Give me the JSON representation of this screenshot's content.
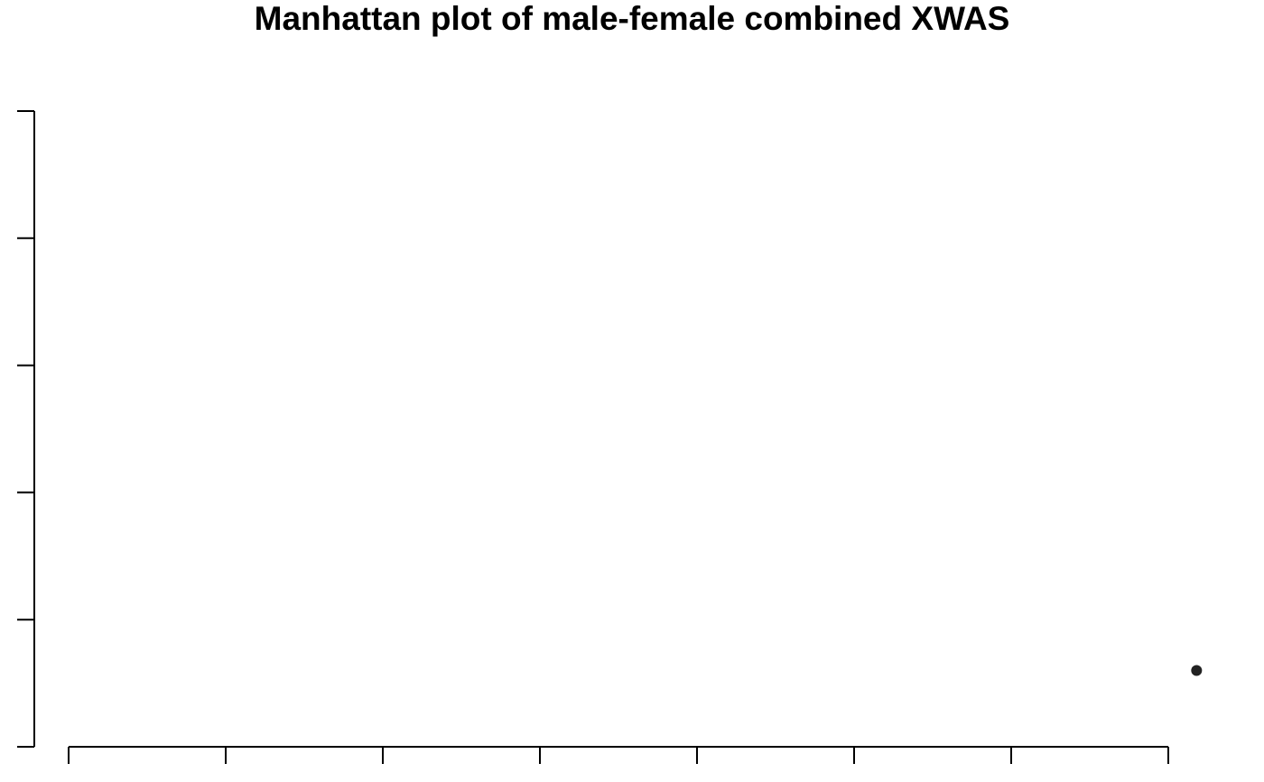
{
  "chart_data": {
    "type": "scatter",
    "title": "Manhattan plot of male-female combined XWAS",
    "xlabel": "",
    "ylabel": "",
    "xlim": [
      0,
      7.2
    ],
    "ylim": [
      0,
      5
    ],
    "x_ticks": [
      0,
      1,
      2,
      3,
      4,
      5,
      6,
      7
    ],
    "y_ticks": [
      0,
      1,
      2,
      3,
      4,
      5
    ],
    "x_tick_labels": [],
    "y_tick_labels": [],
    "grid": false,
    "legend": "none",
    "series": [
      {
        "color": "#222222",
        "points": [
          {
            "x": 7.18,
            "y": 0.6
          }
        ]
      }
    ]
  }
}
